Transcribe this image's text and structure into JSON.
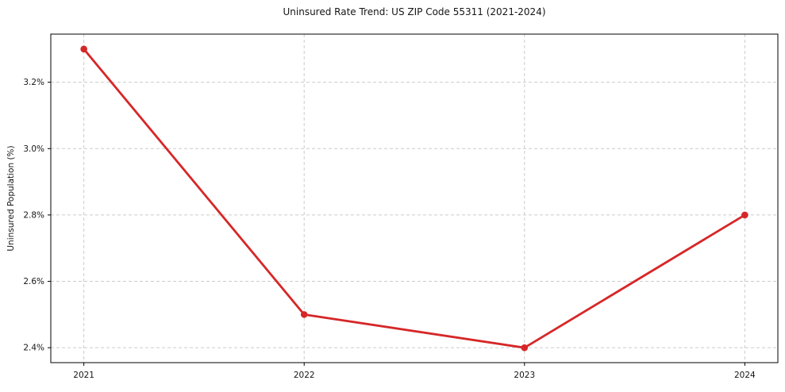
{
  "chart_data": {
    "type": "line",
    "title": "Uninsured Rate Trend: US ZIP Code 55311 (2021-2024)",
    "xlabel": "",
    "ylabel": "Uninsured Population (%)",
    "x": [
      2021,
      2022,
      2023,
      2024
    ],
    "x_tick_labels": [
      "2021",
      "2022",
      "2023",
      "2024"
    ],
    "series": [
      {
        "name": "Uninsured Population (%)",
        "values": [
          3.3,
          2.5,
          2.4,
          2.8
        ]
      }
    ],
    "y_ticks": [
      2.4,
      2.6,
      2.8,
      3.0,
      3.2
    ],
    "y_tick_labels": [
      "2.4%",
      "2.6%",
      "2.8%",
      "3.0%",
      "3.2%"
    ],
    "ylim": [
      2.355,
      3.345
    ],
    "xlim": [
      2020.85,
      2024.15
    ],
    "grid": true,
    "legend_position": "none",
    "colors": {
      "line": "#d62728",
      "marker": "#d62728",
      "grid": "#cccccc",
      "spine": "#000000",
      "text": "#151515"
    }
  }
}
